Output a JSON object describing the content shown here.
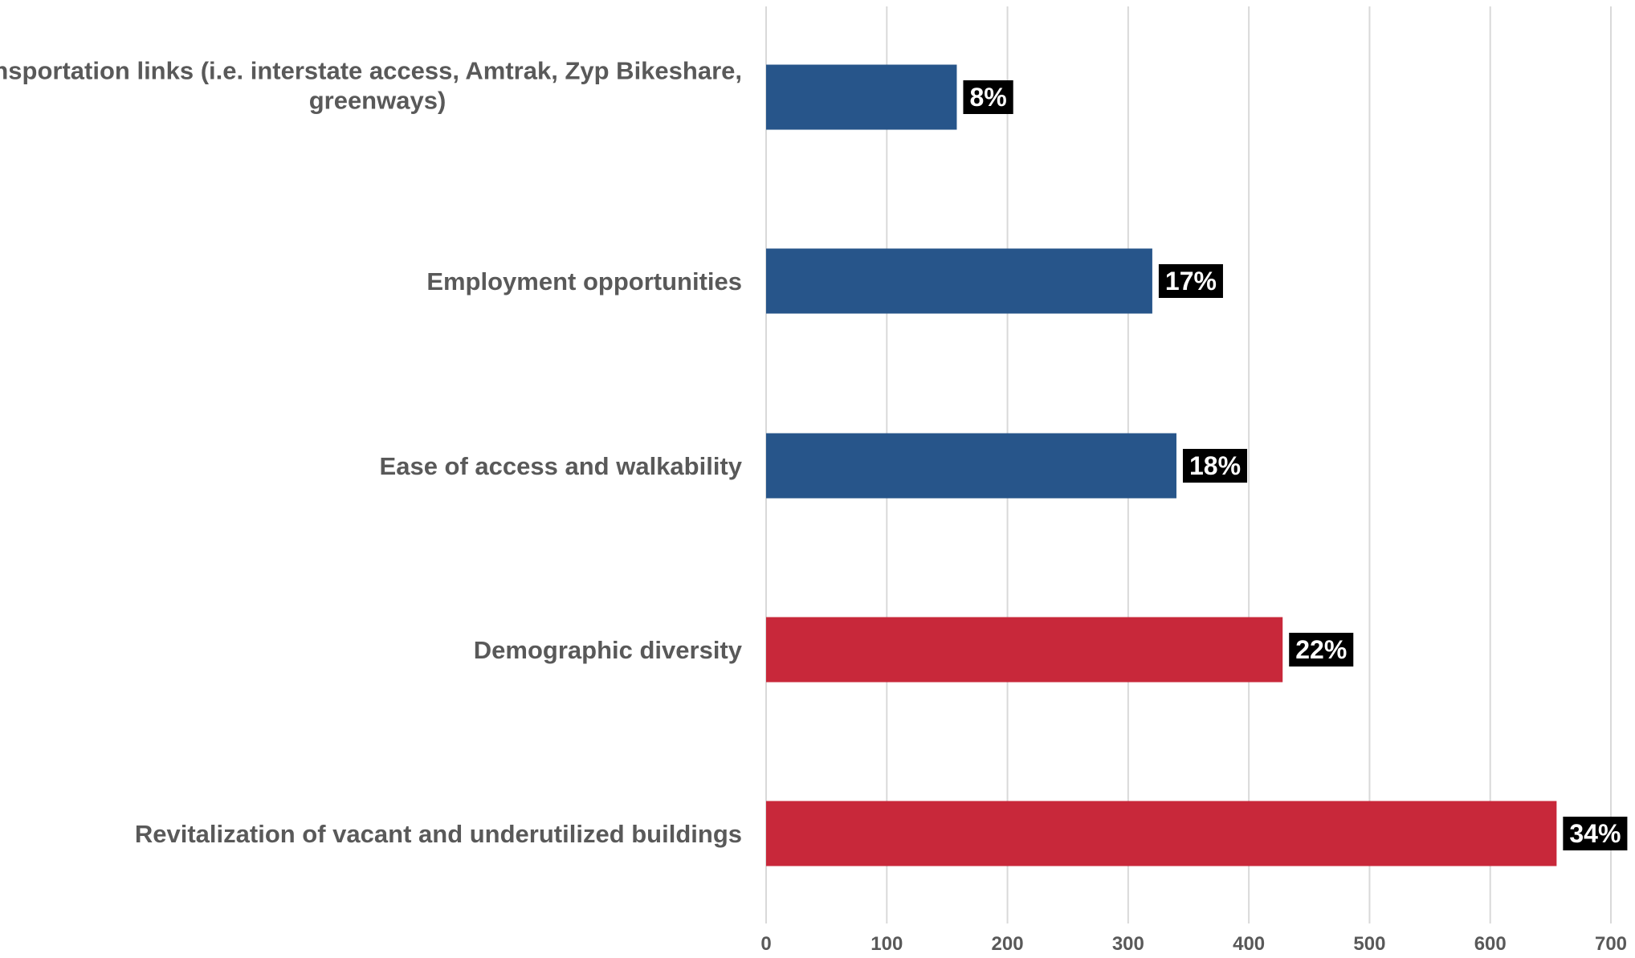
{
  "chart_data": {
    "type": "bar",
    "orientation": "horizontal",
    "categories": [
      "Transportation links (i.e. interstate access, Amtrak, Zyp Bikeshare, greenways)",
      "Employment opportunities",
      "Ease of access and walkability",
      "Demographic diversity",
      "Revitalization of vacant and underutilized buildings"
    ],
    "category_lines": [
      [
        "Transportation links (i.e. interstate access, Amtrak, Zyp Bikeshare,",
        "greenways)"
      ],
      [
        "Employment opportunities"
      ],
      [
        "Ease of access and walkability"
      ],
      [
        "Demographic diversity"
      ],
      [
        "Revitalization of vacant and underutilized buildings"
      ]
    ],
    "values": [
      158,
      320,
      340,
      428,
      655
    ],
    "data_labels": [
      "8%",
      "17%",
      "18%",
      "22%",
      "34%"
    ],
    "bar_colors": [
      "#27558A",
      "#27558A",
      "#27558A",
      "#C8283A",
      "#C8283A"
    ],
    "xlim": [
      0,
      700
    ],
    "x_ticks": [
      0,
      100,
      200,
      300,
      400,
      500,
      600,
      700
    ],
    "x_tick_labels": [
      "0",
      "100",
      "200",
      "300",
      "400",
      "500",
      "600",
      "700"
    ],
    "grid": true,
    "title": "",
    "xlabel": "",
    "ylabel": "",
    "colors": {
      "grid": "#D9D9D9",
      "label_text": "#595959",
      "data_label_bg": "#000000",
      "data_label_text": "#FFFFFF"
    }
  }
}
